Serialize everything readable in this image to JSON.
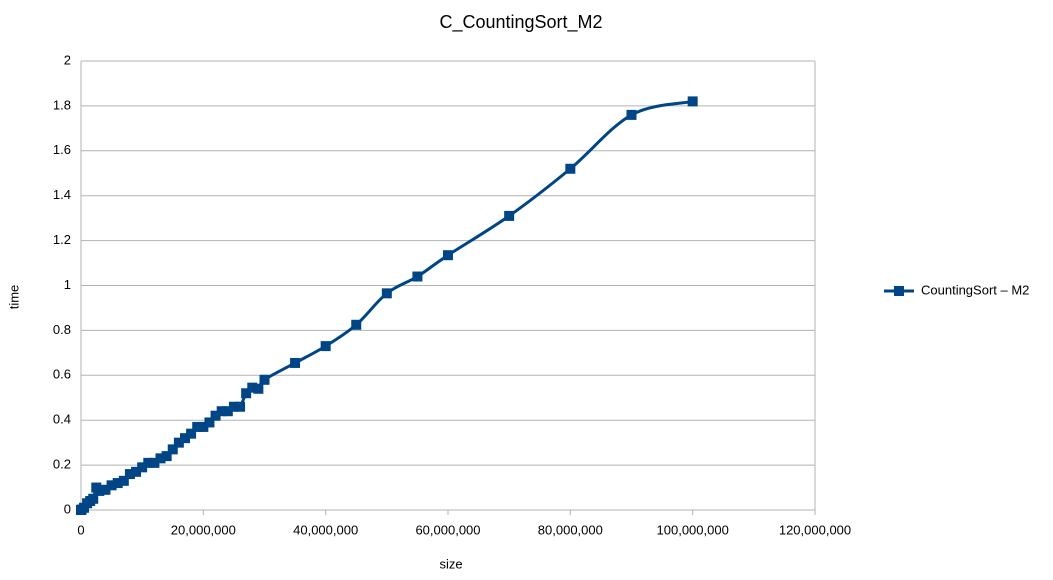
{
  "chart_data": {
    "type": "line",
    "title": "C_CountingSort_M2",
    "x_label": "size",
    "y_label": "time",
    "x": [
      0,
      100000,
      500000,
      1000000,
      1500000,
      2000000,
      2500000,
      3000000,
      4000000,
      5000000,
      6000000,
      7000000,
      8000000,
      9000000,
      10000000,
      11000000,
      12000000,
      13000000,
      14000000,
      15000000,
      16000000,
      17000000,
      18000000,
      19000000,
      20000000,
      21000000,
      22000000,
      23000000,
      24000000,
      25000000,
      26000000,
      27000000,
      28000000,
      29000000,
      30000000,
      35000000,
      40000000,
      45000000,
      50000000,
      55000000,
      60000000,
      70000000,
      80000000,
      90000000,
      100000000
    ],
    "series": [
      {
        "name": "CountingSort – M2",
        "color": "#004586",
        "values": [
          0,
          0.002,
          0.01,
          0.03,
          0.04,
          0.05,
          0.1,
          0.085,
          0.09,
          0.11,
          0.12,
          0.13,
          0.16,
          0.17,
          0.19,
          0.21,
          0.21,
          0.23,
          0.24,
          0.27,
          0.3,
          0.32,
          0.34,
          0.37,
          0.37,
          0.39,
          0.42,
          0.44,
          0.44,
          0.46,
          0.46,
          0.52,
          0.545,
          0.54,
          0.58,
          0.655,
          0.73,
          0.825,
          0.965,
          1.04,
          1.135,
          1.31,
          1.52,
          1.76,
          1.82
        ]
      }
    ],
    "xlim": [
      0,
      120000000
    ],
    "xticks": [
      0,
      {
        "value": 20000000,
        "label": "20,000,000"
      },
      {
        "value": 40000000,
        "label": "40,000,000"
      },
      {
        "value": 60000000,
        "label": "60,000,000"
      },
      {
        "value": 80000000,
        "label": "80,000,000"
      },
      {
        "value": 100000000,
        "label": "100,000,000"
      },
      {
        "value": 120000000,
        "label": "120,000,000"
      }
    ],
    "ylim": [
      0,
      2
    ],
    "yticks": [
      0,
      0.2,
      0.4,
      0.6,
      0.8,
      1,
      1.2,
      1.4,
      1.6,
      1.8,
      2
    ],
    "grid": true,
    "legend": "right"
  }
}
